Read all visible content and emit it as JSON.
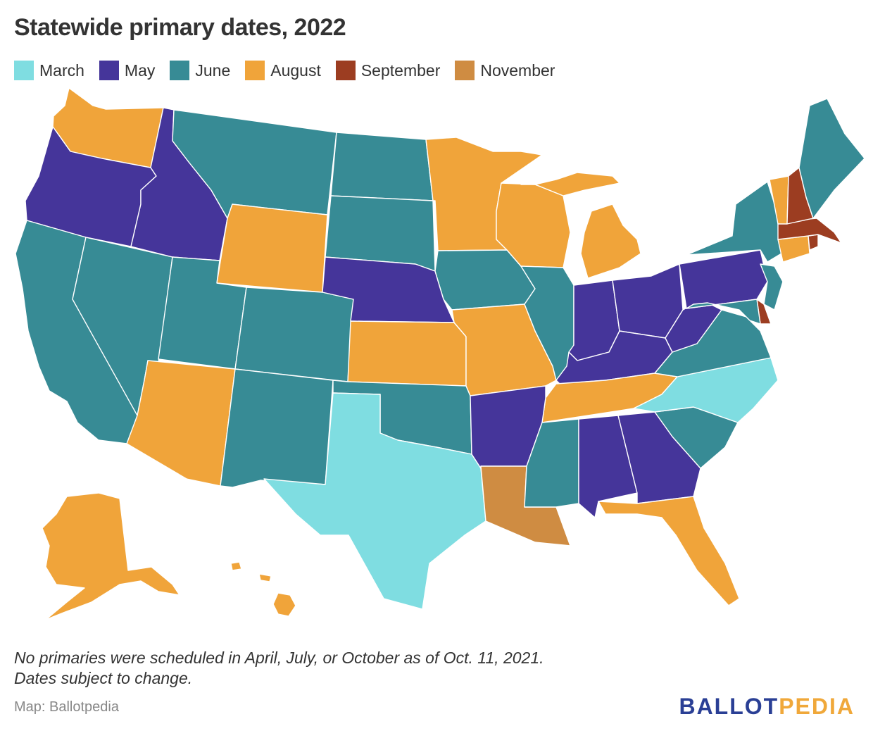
{
  "title": "Statewide primary dates, 2022",
  "legend": [
    {
      "label": "March",
      "color": "#7fdde1"
    },
    {
      "label": "May",
      "color": "#45359a"
    },
    {
      "label": "June",
      "color": "#378b95"
    },
    {
      "label": "August",
      "color": "#f0a43a"
    },
    {
      "label": "September",
      "color": "#9c3d21"
    },
    {
      "label": "November",
      "color": "#cf8c42"
    }
  ],
  "colors": {
    "March": "#7fdde1",
    "May": "#45359a",
    "June": "#378b95",
    "August": "#f0a43a",
    "September": "#9c3d21",
    "November": "#cf8c42"
  },
  "states": {
    "WA": "August",
    "OR": "May",
    "CA": "June",
    "NV": "June",
    "ID": "May",
    "MT": "June",
    "WY": "August",
    "UT": "June",
    "AZ": "August",
    "CO": "June",
    "NM": "June",
    "ND": "June",
    "SD": "June",
    "NE": "May",
    "KS": "August",
    "OK": "June",
    "TX": "March",
    "MN": "August",
    "IA": "June",
    "MO": "August",
    "AR": "May",
    "LA": "November",
    "WI": "August",
    "IL": "June",
    "MI": "August",
    "IN": "May",
    "OH": "May",
    "KY": "May",
    "TN": "August",
    "MS": "June",
    "AL": "May",
    "GA": "May",
    "FL": "August",
    "SC": "June",
    "NC": "March",
    "VA": "June",
    "WV": "May",
    "PA": "May",
    "NY": "June",
    "VT": "August",
    "NH": "September",
    "ME": "June",
    "MA": "September",
    "RI": "September",
    "CT": "August",
    "NJ": "June",
    "DE": "September",
    "MD": "June",
    "AK": "August",
    "HI": "August"
  },
  "note_line1": "No primaries were scheduled in April, July, or October as of Oct. 11, 2021.",
  "note_line2": "Dates subject to change.",
  "source": "Map: Ballotpedia",
  "brand": {
    "ballot": "BALLOT",
    "pedia": "PEDIA"
  }
}
